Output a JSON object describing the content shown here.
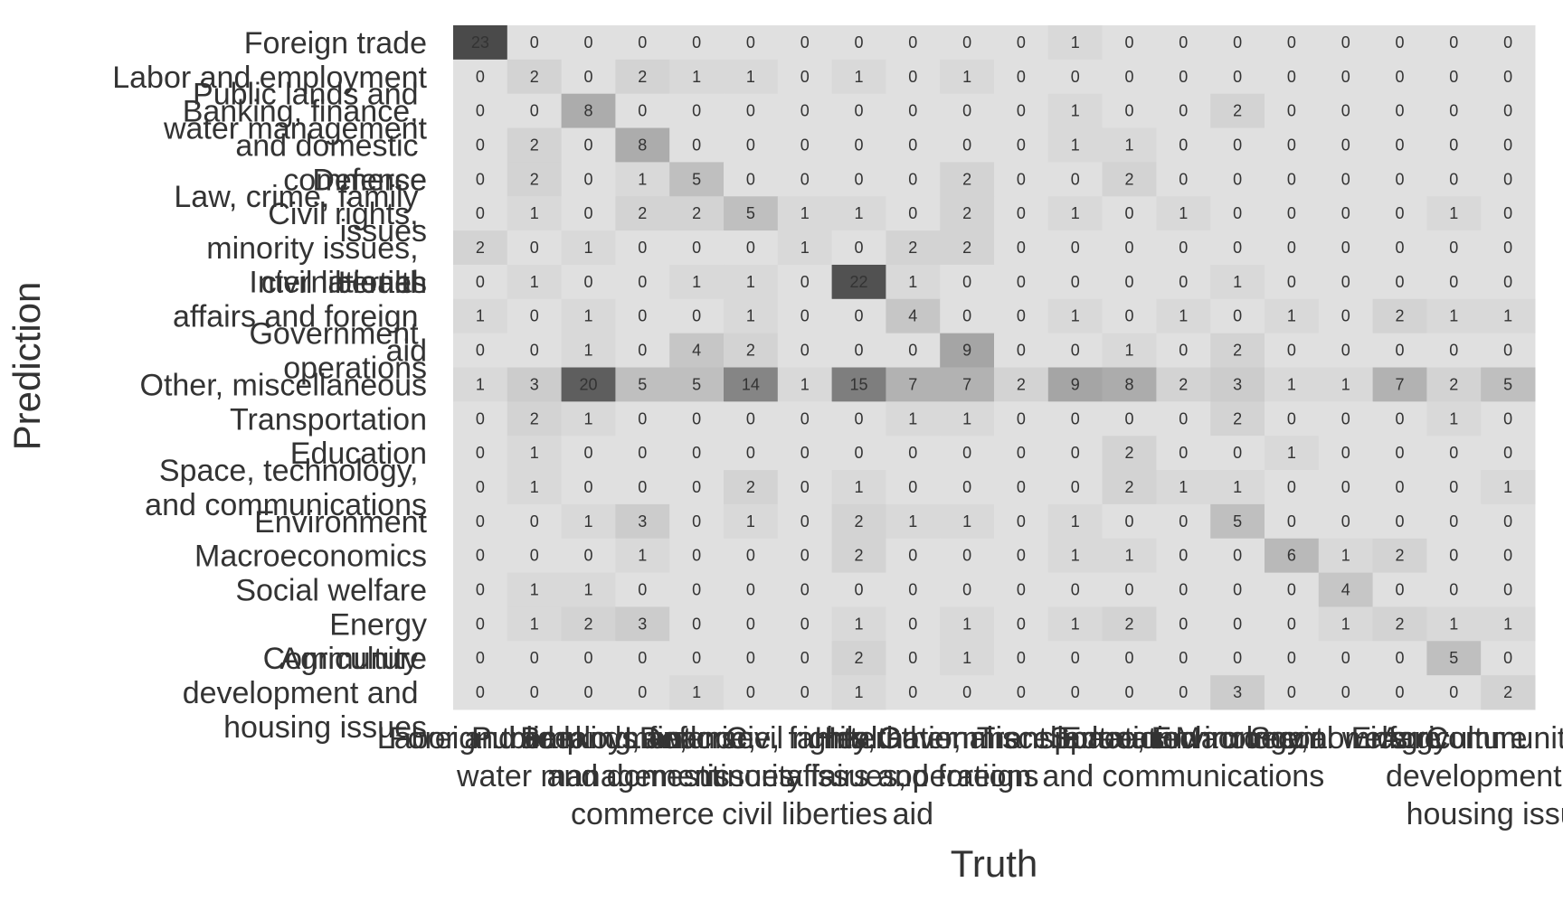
{
  "chart_data": {
    "type": "heatmap",
    "x_label": "Truth",
    "y_label": "Prediction",
    "categories": [
      "Foreign trade",
      "Labor and employment",
      "Public lands and water management",
      "Banking, finance, and domestic commerce",
      "Defense",
      "Law, crime, family issues",
      "Civil rights, minority issues, civil liberties",
      "Health",
      "International affairs and foreign aid",
      "Government operations",
      "Other, miscellaneous",
      "Transportation",
      "Education",
      "Space, technology, and communications",
      "Environment",
      "Macroeconomics",
      "Social welfare",
      "Energy",
      "Agriculture",
      "Community development and housing issues"
    ],
    "z": [
      [
        23,
        0,
        0,
        0,
        0,
        0,
        0,
        0,
        0,
        0,
        0,
        1,
        0,
        0,
        0,
        0,
        0,
        0,
        0,
        0
      ],
      [
        0,
        2,
        0,
        2,
        1,
        1,
        0,
        1,
        0,
        1,
        0,
        0,
        0,
        0,
        0,
        0,
        0,
        0,
        0,
        0
      ],
      [
        0,
        0,
        8,
        0,
        0,
        0,
        0,
        0,
        0,
        0,
        0,
        1,
        0,
        0,
        2,
        0,
        0,
        0,
        0,
        0
      ],
      [
        0,
        2,
        0,
        8,
        0,
        0,
        0,
        0,
        0,
        0,
        0,
        1,
        1,
        0,
        0,
        0,
        0,
        0,
        0,
        0
      ],
      [
        0,
        2,
        0,
        1,
        5,
        0,
        0,
        0,
        0,
        2,
        0,
        0,
        2,
        0,
        0,
        0,
        0,
        0,
        0,
        0
      ],
      [
        0,
        1,
        0,
        2,
        2,
        5,
        1,
        1,
        0,
        2,
        0,
        1,
        0,
        1,
        0,
        0,
        0,
        0,
        1,
        0
      ],
      [
        2,
        0,
        1,
        0,
        0,
        0,
        1,
        0,
        2,
        2,
        0,
        0,
        0,
        0,
        0,
        0,
        0,
        0,
        0,
        0
      ],
      [
        0,
        1,
        0,
        0,
        1,
        1,
        0,
        22,
        1,
        0,
        0,
        0,
        0,
        0,
        1,
        0,
        0,
        0,
        0,
        0
      ],
      [
        1,
        0,
        1,
        0,
        0,
        1,
        0,
        0,
        4,
        0,
        0,
        1,
        0,
        1,
        0,
        1,
        0,
        2,
        1,
        1
      ],
      [
        0,
        0,
        1,
        0,
        4,
        2,
        0,
        0,
        0,
        9,
        0,
        0,
        1,
        0,
        2,
        0,
        0,
        0,
        0,
        0
      ],
      [
        1,
        3,
        20,
        5,
        5,
        14,
        1,
        15,
        7,
        7,
        2,
        9,
        8,
        2,
        3,
        1,
        1,
        7,
        2,
        5
      ],
      [
        0,
        2,
        1,
        0,
        0,
        0,
        0,
        0,
        1,
        1,
        0,
        0,
        0,
        0,
        2,
        0,
        0,
        0,
        1,
        0
      ],
      [
        0,
        1,
        0,
        0,
        0,
        0,
        0,
        0,
        0,
        0,
        0,
        0,
        2,
        0,
        0,
        1,
        0,
        0,
        0,
        0
      ],
      [
        0,
        1,
        0,
        0,
        0,
        2,
        0,
        1,
        0,
        0,
        0,
        0,
        2,
        1,
        1,
        0,
        0,
        0,
        0,
        1
      ],
      [
        0,
        0,
        1,
        3,
        0,
        1,
        0,
        2,
        1,
        1,
        0,
        1,
        0,
        0,
        5,
        0,
        0,
        0,
        0,
        0
      ],
      [
        0,
        0,
        0,
        1,
        0,
        0,
        0,
        2,
        0,
        0,
        0,
        1,
        1,
        0,
        0,
        6,
        1,
        2,
        0,
        0
      ],
      [
        0,
        1,
        1,
        0,
        0,
        0,
        0,
        0,
        0,
        0,
        0,
        0,
        0,
        0,
        0,
        0,
        4,
        0,
        0,
        0
      ],
      [
        0,
        1,
        2,
        3,
        0,
        0,
        0,
        1,
        0,
        1,
        0,
        1,
        2,
        0,
        0,
        0,
        1,
        2,
        1,
        1
      ],
      [
        0,
        0,
        0,
        0,
        0,
        0,
        0,
        2,
        0,
        1,
        0,
        0,
        0,
        0,
        0,
        0,
        0,
        0,
        5,
        0
      ],
      [
        0,
        0,
        0,
        0,
        1,
        0,
        0,
        1,
        0,
        0,
        0,
        0,
        0,
        0,
        3,
        0,
        0,
        0,
        0,
        2
      ]
    ],
    "colors": [
      "#e0e0e0",
      "#4a4a4a"
    ]
  }
}
